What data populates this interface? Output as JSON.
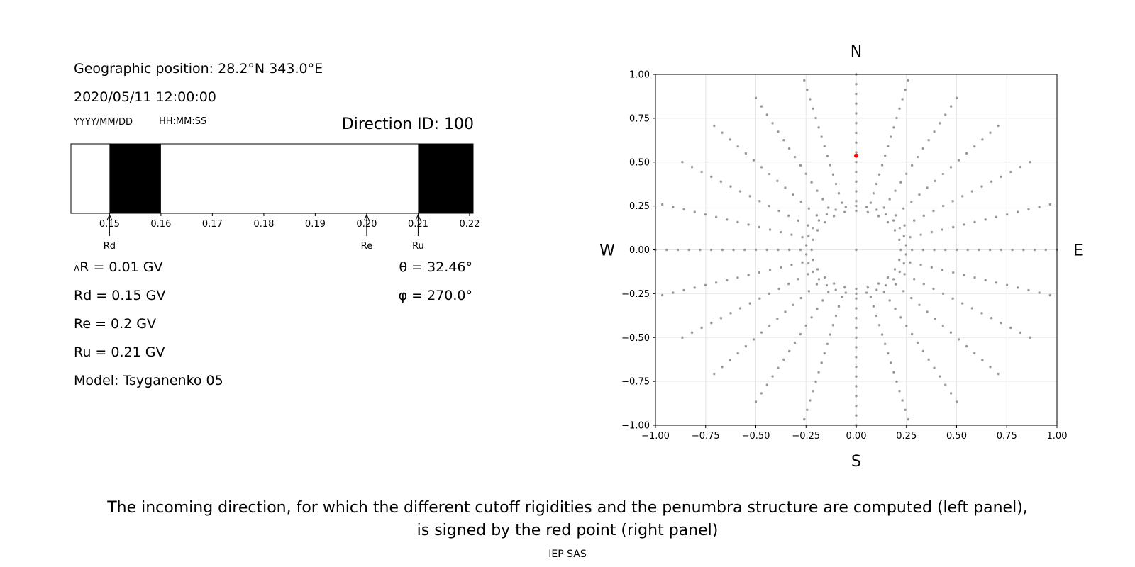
{
  "left_panel": {
    "geo_label": "Geographic position: 28.2°N 343.0°E",
    "datetime": "2020/05/11 12:00:00",
    "date_format": "YYYY/MM/DD",
    "time_format": "HH:MM:SS",
    "direction_id": "Direction ID: 100",
    "params": {
      "delta_r": "R = 0.01 GV",
      "delta_r_symbol": "Δ",
      "rd": "Rd = 0.15 GV",
      "re": "Re = 0.2 GV",
      "ru": "Ru = 0.21 GV",
      "model": "Model: Tsyganenko 05",
      "theta": "θ = 32.46°",
      "phi": "φ = 270.0°"
    }
  },
  "caption": {
    "line1": "The incoming direction, for which the different cutoff rigidities and the penumbra structure are computed (left panel),",
    "line2": "is signed by the red point (right panel)",
    "credit": "IEP SAS"
  },
  "chart_data": [
    {
      "type": "bar",
      "name_hint": "penumbra",
      "xlim": [
        0.1425,
        0.2207
      ],
      "ticks": [
        "0.15",
        "0.16",
        "0.17",
        "0.18",
        "0.19",
        "0.20",
        "0.21",
        "0.22"
      ],
      "tick_values": [
        0.15,
        0.16,
        0.17,
        0.18,
        0.19,
        0.2,
        0.21,
        0.22
      ],
      "forbidden_bands": [
        [
          0.15,
          0.16
        ],
        [
          0.21,
          0.2207
        ]
      ],
      "markers": [
        {
          "label": "Rd",
          "x": 0.15
        },
        {
          "label": "Re",
          "x": 0.2
        },
        {
          "label": "Ru",
          "x": 0.21
        }
      ],
      "colors": {
        "band": "#000000",
        "background": "#ffffff"
      }
    },
    {
      "type": "scatter",
      "xlim": [
        -1.0,
        1.0
      ],
      "ylim": [
        -1.0,
        1.0
      ],
      "ticks": [
        "−1.00",
        "−0.75",
        "−0.50",
        "−0.25",
        "0.00",
        "0.25",
        "0.50",
        "0.75",
        "1.00"
      ],
      "tick_values": [
        -1.0,
        -0.75,
        -0.5,
        -0.25,
        0.0,
        0.25,
        0.5,
        0.75,
        1.0
      ],
      "grid": true,
      "compass": {
        "top": "N",
        "bottom": "S",
        "left": "W",
        "right": "E"
      },
      "grid_points": {
        "description": "zenith angles 0-90 by 5 on spokes every 15 deg azimuth; ring at 15 deg zenith every 12 deg",
        "color": "#999999"
      },
      "highlight_point": {
        "x": 0.0,
        "y": 0.537,
        "color": "#ff0000"
      }
    }
  ]
}
